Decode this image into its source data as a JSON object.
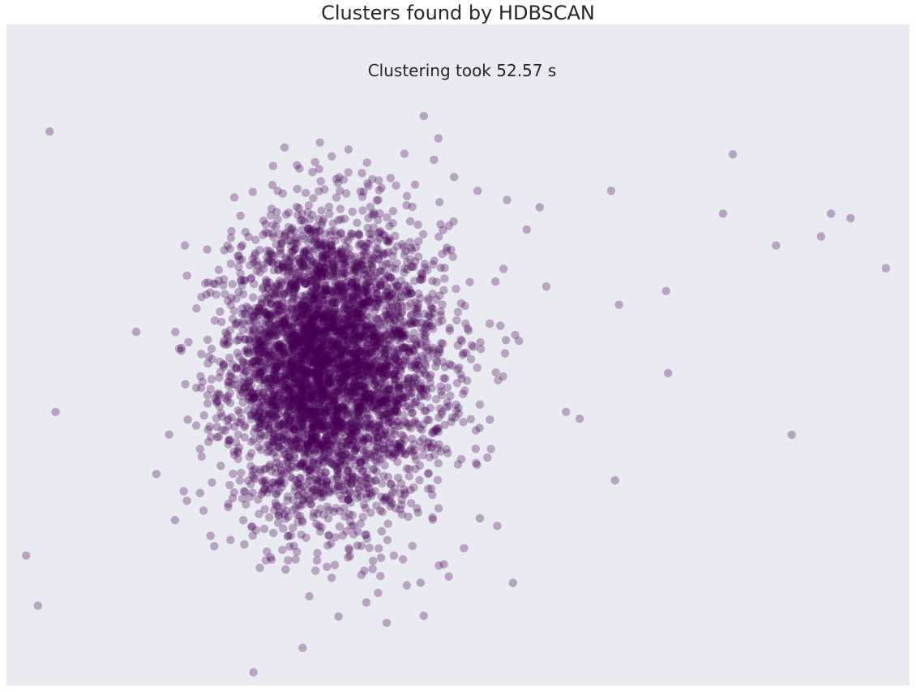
{
  "chart_data": {
    "type": "scatter",
    "title": "Clusters found by HDBSCAN",
    "annotation": "Clustering took 52.57 s",
    "xlabel": "",
    "ylabel": "",
    "axes_visible": false,
    "grid": false,
    "background_color": "#eaeaf2",
    "point_color": "#440154",
    "point_alpha": 0.3,
    "series": [
      {
        "cluster": "core",
        "approx_count": 4500,
        "description_stats": {
          "x_mean": 0.33,
          "y_mean": -0.05,
          "x_spread": 0.24,
          "y_spread": 0.32
        }
      }
    ],
    "outliers": {
      "x": [
        -1.2,
        -1.14,
        -1.08,
        -1.05,
        0.9,
        0.98,
        1.0,
        1.1,
        1.15,
        1.2,
        1.25,
        1.28,
        1.35,
        1.45,
        1.55,
        1.62,
        1.78,
        1.8,
        1.82,
        2.06,
        2.07,
        2.35,
        2.4,
        2.62,
        2.7,
        2.85,
        2.9,
        3.0,
        3.18
      ],
      "y": [
        -0.88,
        -1.1,
        0.98,
        -0.25,
        0.95,
        0.78,
        -0.48,
        0.72,
        -0.45,
        -0.75,
        0.68,
        -1.0,
        0.55,
        0.3,
        -0.25,
        -0.28,
        0.72,
        -0.55,
        0.22,
        0.28,
        -0.08,
        0.62,
        0.88,
        0.48,
        -0.35,
        0.52,
        0.62,
        0.6,
        0.38
      ]
    },
    "xlim": [
      -1.3,
      3.3
    ],
    "ylim": [
      -1.45,
      1.45
    ]
  }
}
